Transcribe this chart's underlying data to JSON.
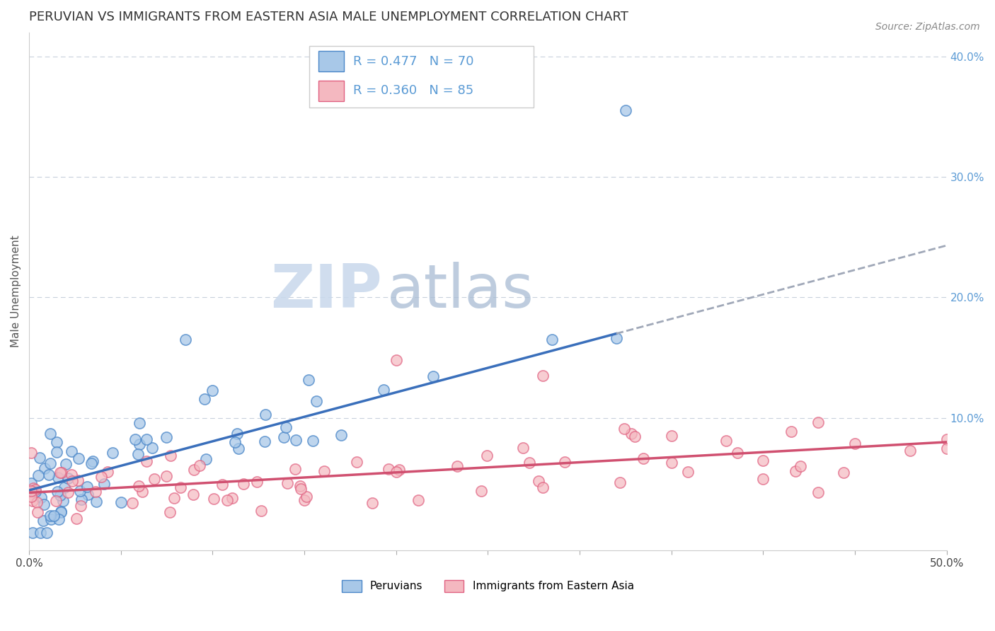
{
  "title": "PERUVIAN VS IMMIGRANTS FROM EASTERN ASIA MALE UNEMPLOYMENT CORRELATION CHART",
  "source": "Source: ZipAtlas.com",
  "ylabel": "Male Unemployment",
  "xlim": [
    0.0,
    0.5
  ],
  "ylim": [
    -0.01,
    0.42
  ],
  "series": [
    {
      "name": "Peruvians",
      "R": 0.477,
      "N": 70,
      "scatter_color": "#a8c8e8",
      "edge_color": "#4a86c8",
      "line_color": "#3a6fbb"
    },
    {
      "name": "Immigrants from Eastern Asia",
      "R": 0.36,
      "N": 85,
      "scatter_color": "#f4b8c0",
      "edge_color": "#e06080",
      "line_color": "#d05070"
    }
  ],
  "legend_text_color": "#5b9bd5",
  "watermark_zip_color": "#c8d8ec",
  "watermark_atlas_color": "#b0c4de",
  "background_color": "#ffffff",
  "grid_color": "#c8d0dc",
  "title_fontsize": 13,
  "axis_label_fontsize": 11,
  "tick_fontsize": 11,
  "source_fontsize": 10
}
